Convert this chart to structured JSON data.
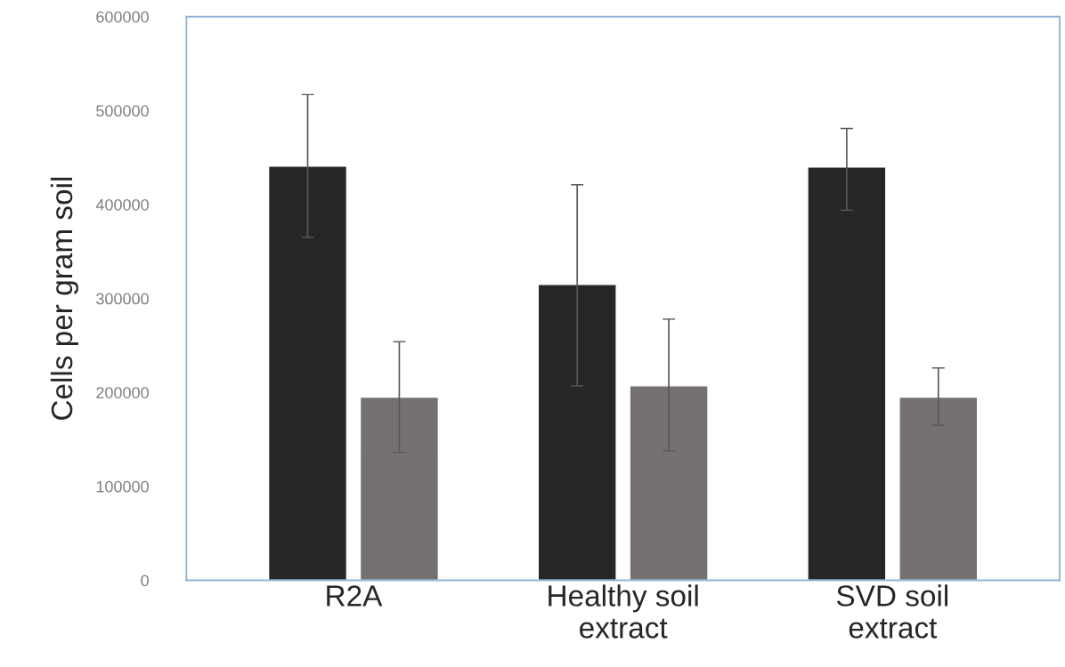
{
  "chart_data": {
    "type": "bar",
    "ylabel": "Cells per gram soil",
    "categories": [
      "R2A",
      "Healthy soil\nextract",
      "SVD soil\nextract"
    ],
    "series": [
      {
        "color": "#262626",
        "values": [
          441000,
          315000,
          440000
        ],
        "errors": [
          [
            365000,
            517000
          ],
          [
            207000,
            421000
          ],
          [
            394000,
            481000
          ]
        ]
      },
      {
        "color": "#767171",
        "values": [
          195000,
          207000,
          195000
        ],
        "errors": [
          [
            136000,
            254000
          ],
          [
            138000,
            278000
          ],
          [
            165000,
            226000
          ]
        ]
      }
    ],
    "ylim": [
      0,
      600000
    ],
    "yticks": [
      0,
      100000,
      200000,
      300000,
      400000,
      500000,
      600000
    ],
    "grid": false,
    "legend": false
  }
}
